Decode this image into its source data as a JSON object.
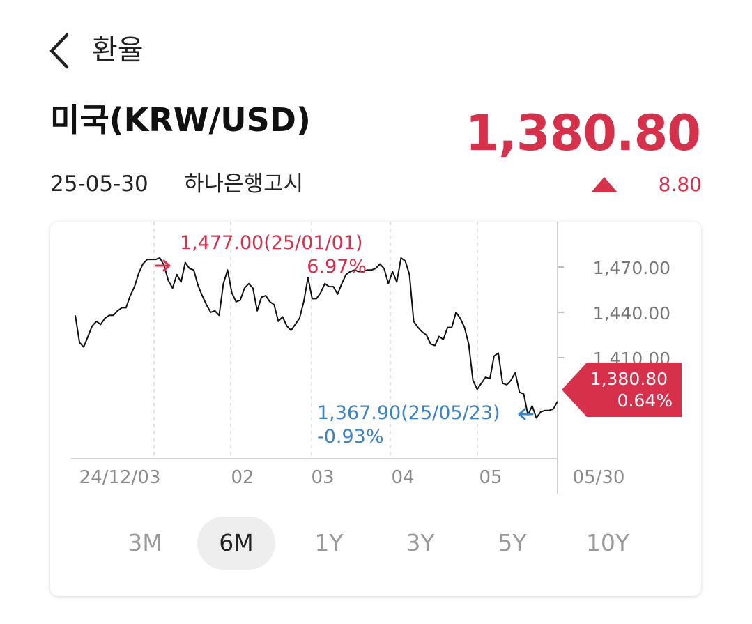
{
  "header": {
    "title": "환율"
  },
  "pair": {
    "title": "미국(KRW/USD)",
    "rate": "1,380.80",
    "date": "25-05-30",
    "source": "하나은행고시",
    "change": "8.80",
    "change_dir": "up"
  },
  "colors": {
    "up": "#d6304a",
    "down": "#3a82c4",
    "line": "#111111"
  },
  "chart_data": {
    "type": "line",
    "x_ticks": [
      "24/12/03",
      "02",
      "03",
      "04",
      "05",
      "05/30"
    ],
    "y_ticks": [
      "1,470.00",
      "1,440.00",
      "1,410.00"
    ],
    "y_tick_values": [
      1470,
      1440,
      1410
    ],
    "ylim": [
      1343,
      1500
    ],
    "high": {
      "label": "1,477.00(25/01/01)",
      "pct": "6.97%",
      "value": 1477.0
    },
    "low": {
      "label": "1,367.90(25/05/23)",
      "pct": "-0.93%",
      "value": 1367.9
    },
    "current": {
      "value": "1,380.80",
      "pct": "0.64%"
    },
    "series": [
      {
        "values": [
          1438,
          1420,
          1417,
          1424,
          1431,
          1434,
          1432,
          1436,
          1438,
          1438,
          1441,
          1443,
          1443,
          1451,
          1457,
          1466,
          1472,
          1475,
          1475,
          1475,
          1476,
          1471,
          1461,
          1456,
          1465,
          1460,
          1473,
          1469,
          1468,
          1458,
          1451,
          1445,
          1440,
          1441,
          1438,
          1459,
          1468,
          1453,
          1447,
          1448,
          1456,
          1459,
          1456,
          1441,
          1450,
          1451,
          1447,
          1445,
          1434,
          1437,
          1431,
          1428,
          1432,
          1436,
          1447,
          1463,
          1449,
          1449,
          1453,
          1459,
          1457,
          1457,
          1452,
          1459,
          1465,
          1467,
          1468,
          1467,
          1467,
          1468,
          1468,
          1469,
          1472,
          1469,
          1459,
          1467,
          1460,
          1476,
          1474,
          1465,
          1434,
          1430,
          1427,
          1425,
          1419,
          1418,
          1424,
          1422,
          1430,
          1430,
          1440,
          1436,
          1430,
          1419,
          1395,
          1389,
          1393,
          1397,
          1396,
          1411,
          1413,
          1393,
          1392,
          1395,
          1400,
          1387,
          1386,
          1372,
          1378,
          1370,
          1374,
          1375,
          1375,
          1376,
          1381
        ]
      }
    ]
  },
  "ranges": {
    "items": [
      "3M",
      "6M",
      "1Y",
      "3Y",
      "5Y",
      "10Y"
    ],
    "active": "6M"
  }
}
